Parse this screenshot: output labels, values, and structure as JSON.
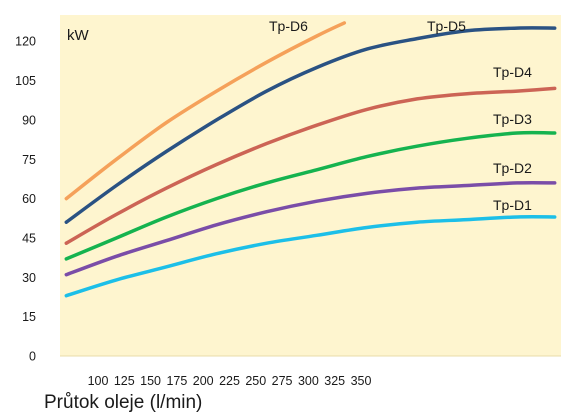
{
  "chart_data": {
    "type": "line",
    "title": "",
    "xlabel": "Průtok oleje (l/min)",
    "ylabel": "kW",
    "xlim": [
      75,
      475
    ],
    "ylim": [
      0,
      130
    ],
    "x_ticks": [
      100,
      125,
      150,
      175,
      200,
      225,
      250,
      275,
      300,
      325,
      350
    ],
    "y_ticks": [
      0,
      15,
      30,
      45,
      60,
      75,
      90,
      105,
      120
    ],
    "grid": false,
    "background": "#fef5cf",
    "legend": "labels on curves",
    "series": [
      {
        "name": "Tp-D1",
        "color": "#1cbfe8",
        "x": [
          80,
          120,
          160,
          200,
          240,
          280,
          320,
          360,
          400,
          440,
          470
        ],
        "y": [
          23,
          29,
          34,
          39,
          43,
          46,
          49,
          51,
          52,
          53,
          53
        ]
      },
      {
        "name": "Tp-D2",
        "color": "#7a4da8",
        "x": [
          80,
          120,
          160,
          200,
          240,
          280,
          320,
          360,
          400,
          440,
          470
        ],
        "y": [
          31,
          38,
          44,
          50,
          55,
          59,
          62,
          64,
          65,
          66,
          66
        ]
      },
      {
        "name": "Tp-D3",
        "color": "#15b34f",
        "x": [
          80,
          120,
          160,
          200,
          240,
          280,
          320,
          360,
          400,
          440,
          470
        ],
        "y": [
          37,
          45,
          53,
          60,
          66,
          71,
          76,
          80,
          83,
          85,
          85
        ]
      },
      {
        "name": "Tp-D4",
        "color": "#cc6455",
        "x": [
          80,
          120,
          160,
          200,
          240,
          280,
          320,
          360,
          400,
          440,
          470
        ],
        "y": [
          43,
          54,
          64,
          73,
          81,
          88,
          94,
          98,
          100,
          101,
          102
        ]
      },
      {
        "name": "Tp-D5",
        "color": "#2a5283",
        "x": [
          80,
          120,
          160,
          200,
          240,
          280,
          320,
          360,
          400,
          440,
          470
        ],
        "y": [
          51,
          65,
          78,
          90,
          101,
          110,
          117,
          121,
          124,
          125,
          125
        ]
      },
      {
        "name": "Tp-D6",
        "color": "#f5a15a",
        "x": [
          80,
          120,
          160,
          200,
          240,
          280,
          302
        ],
        "y": [
          60,
          75,
          89,
          101,
          112,
          122,
          127
        ]
      }
    ]
  }
}
